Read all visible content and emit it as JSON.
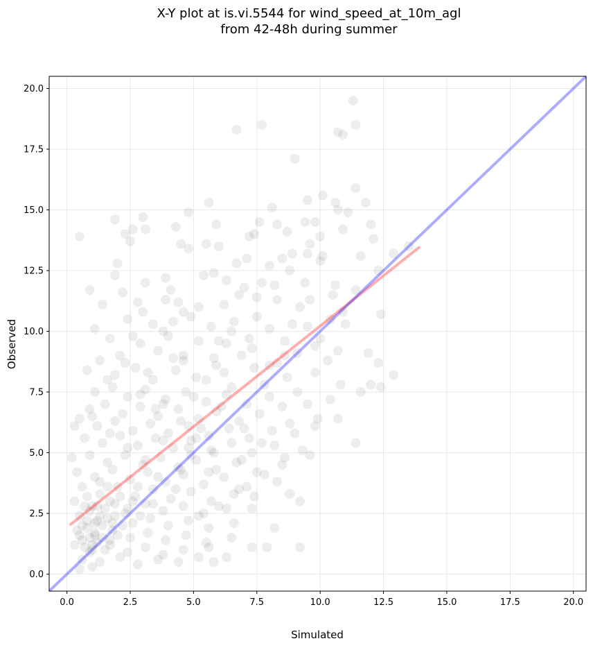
{
  "chart_data": {
    "type": "scatter",
    "title": [
      "X-Y plot at is.vi.5544 for wind_speed_at_10m_agl",
      "from 42-48h during summer"
    ],
    "xlabel": "Simulated",
    "ylabel": "Observed",
    "xlim": [
      -0.7,
      20.5
    ],
    "ylim": [
      -0.7,
      20.5
    ],
    "xticks": [
      0.0,
      2.5,
      5.0,
      7.5,
      10.0,
      12.5,
      15.0,
      17.5,
      20.0
    ],
    "yticks": [
      0.0,
      2.5,
      5.0,
      7.5,
      10.0,
      12.5,
      15.0,
      17.5,
      20.0
    ],
    "grid": true,
    "point_color": "#000000",
    "points": [
      [
        11.3,
        19.5
      ],
      [
        7.7,
        18.5
      ],
      [
        6.7,
        18.3
      ],
      [
        10.7,
        18.2
      ],
      [
        11.4,
        18.5
      ],
      [
        10.9,
        18.1
      ],
      [
        9.0,
        17.1
      ],
      [
        10.1,
        15.6
      ],
      [
        11.4,
        15.9
      ],
      [
        5.6,
        15.3
      ],
      [
        9.5,
        15.4
      ],
      [
        10.6,
        15.3
      ],
      [
        11.8,
        15.3
      ],
      [
        8.1,
        15.1
      ],
      [
        10.7,
        15.0
      ],
      [
        11.1,
        14.9
      ],
      [
        1.9,
        14.6
      ],
      [
        3.0,
        14.7
      ],
      [
        4.8,
        14.9
      ],
      [
        9.4,
        14.5
      ],
      [
        9.8,
        14.5
      ],
      [
        12.0,
        14.4
      ],
      [
        2.6,
        14.2
      ],
      [
        3.1,
        14.2
      ],
      [
        4.3,
        14.3
      ],
      [
        5.9,
        14.4
      ],
      [
        7.6,
        14.5
      ],
      [
        8.3,
        14.4
      ],
      [
        0.5,
        13.9
      ],
      [
        2.3,
        14.0
      ],
      [
        2.5,
        13.7
      ],
      [
        7.4,
        14.0
      ],
      [
        8.7,
        14.1
      ],
      [
        10.0,
        13.9
      ],
      [
        10.9,
        14.2
      ],
      [
        12.1,
        13.8
      ],
      [
        4.5,
        13.6
      ],
      [
        5.5,
        13.6
      ],
      [
        6.0,
        13.5
      ],
      [
        7.2,
        13.9
      ],
      [
        9.6,
        13.6
      ],
      [
        8.9,
        13.2
      ],
      [
        9.5,
        13.2
      ],
      [
        10.1,
        13.1
      ],
      [
        11.6,
        13.1
      ],
      [
        12.9,
        13.2
      ],
      [
        13.5,
        13.5
      ],
      [
        2.0,
        12.8
      ],
      [
        6.7,
        12.8
      ],
      [
        8.5,
        13.0
      ],
      [
        10.0,
        12.9
      ],
      [
        4.8,
        13.4
      ],
      [
        12.3,
        12.5
      ],
      [
        1.9,
        12.3
      ],
      [
        3.9,
        12.2
      ],
      [
        5.4,
        12.3
      ],
      [
        5.8,
        12.4
      ],
      [
        7.7,
        12.0
      ],
      [
        8.8,
        12.5
      ],
      [
        10.6,
        11.9
      ],
      [
        11.4,
        11.7
      ],
      [
        0.9,
        11.7
      ],
      [
        2.2,
        11.6
      ],
      [
        3.1,
        12.0
      ],
      [
        4.1,
        11.7
      ],
      [
        7.0,
        11.8
      ],
      [
        8.2,
        11.9
      ],
      [
        9.6,
        11.3
      ],
      [
        10.5,
        11.5
      ],
      [
        1.4,
        11.1
      ],
      [
        2.8,
        11.2
      ],
      [
        3.9,
        11.3
      ],
      [
        4.6,
        10.8
      ],
      [
        6.2,
        11.1
      ],
      [
        7.5,
        11.4
      ],
      [
        9.2,
        11.0
      ],
      [
        10.4,
        10.5
      ],
      [
        12.4,
        10.7
      ],
      [
        1.1,
        10.1
      ],
      [
        2.4,
        10.5
      ],
      [
        3.4,
        10.3
      ],
      [
        4.9,
        10.6
      ],
      [
        5.7,
        10.2
      ],
      [
        6.6,
        10.4
      ],
      [
        8.0,
        10.1
      ],
      [
        9.5,
        10.2
      ],
      [
        11.0,
        10.3
      ],
      [
        1.7,
        9.7
      ],
      [
        2.9,
        9.5
      ],
      [
        4.0,
        9.8
      ],
      [
        5.2,
        9.6
      ],
      [
        6.3,
        9.5
      ],
      [
        7.2,
        9.7
      ],
      [
        8.6,
        9.6
      ],
      [
        9.8,
        9.4
      ],
      [
        10.7,
        9.2
      ],
      [
        11.9,
        9.1
      ],
      [
        1.3,
        8.8
      ],
      [
        2.1,
        9.0
      ],
      [
        3.6,
        9.2
      ],
      [
        4.6,
        8.8
      ],
      [
        5.8,
        8.9
      ],
      [
        6.9,
        9.0
      ],
      [
        8.3,
        8.7
      ],
      [
        9.1,
        9.1
      ],
      [
        10.3,
        8.8
      ],
      [
        12.3,
        8.7
      ],
      [
        12.9,
        8.2
      ],
      [
        0.8,
        8.4
      ],
      [
        1.9,
        8.2
      ],
      [
        2.7,
        8.5
      ],
      [
        3.4,
        8.0
      ],
      [
        4.3,
        8.4
      ],
      [
        5.1,
        8.1
      ],
      [
        6.2,
        8.3
      ],
      [
        7.4,
        8.5
      ],
      [
        8.7,
        8.1
      ],
      [
        9.8,
        8.3
      ],
      [
        10.8,
        7.8
      ],
      [
        12.0,
        7.8
      ],
      [
        12.4,
        7.7
      ],
      [
        11.6,
        7.5
      ],
      [
        1.1,
        7.5
      ],
      [
        1.8,
        7.7
      ],
      [
        2.4,
        7.3
      ],
      [
        3.1,
        7.6
      ],
      [
        3.9,
        7.2
      ],
      [
        4.7,
        7.5
      ],
      [
        5.5,
        7.1
      ],
      [
        6.3,
        7.4
      ],
      [
        7.1,
        7.0
      ],
      [
        8.0,
        7.3
      ],
      [
        9.1,
        7.5
      ],
      [
        10.4,
        7.2
      ],
      [
        0.9,
        6.8
      ],
      [
        1.5,
        7.0
      ],
      [
        2.2,
        6.6
      ],
      [
        2.9,
        6.9
      ],
      [
        3.6,
        6.5
      ],
      [
        4.4,
        6.8
      ],
      [
        5.2,
        6.4
      ],
      [
        5.9,
        6.7
      ],
      [
        6.8,
        6.3
      ],
      [
        7.6,
        6.6
      ],
      [
        8.5,
        6.9
      ],
      [
        9.9,
        6.4
      ],
      [
        10.7,
        6.4
      ],
      [
        0.5,
        6.4
      ],
      [
        1.2,
        6.1
      ],
      [
        1.9,
        6.3
      ],
      [
        2.6,
        5.9
      ],
      [
        3.3,
        6.2
      ],
      [
        4.0,
        5.8
      ],
      [
        4.8,
        6.1
      ],
      [
        5.6,
        5.7
      ],
      [
        6.4,
        6.0
      ],
      [
        7.2,
        5.6
      ],
      [
        8.1,
        5.9
      ],
      [
        9.0,
        5.8
      ],
      [
        9.8,
        6.1
      ],
      [
        11.4,
        5.4
      ],
      [
        0.3,
        6.1
      ],
      [
        0.7,
        5.6
      ],
      [
        1.4,
        5.4
      ],
      [
        2.1,
        5.7
      ],
      [
        2.8,
        5.3
      ],
      [
        3.5,
        5.6
      ],
      [
        4.2,
        5.2
      ],
      [
        4.9,
        5.5
      ],
      [
        5.7,
        5.1
      ],
      [
        6.5,
        5.4
      ],
      [
        7.3,
        5.0
      ],
      [
        8.2,
        5.3
      ],
      [
        9.3,
        5.1
      ],
      [
        0.2,
        4.8
      ],
      [
        0.9,
        4.9
      ],
      [
        1.6,
        4.6
      ],
      [
        2.3,
        4.9
      ],
      [
        3.0,
        4.5
      ],
      [
        3.7,
        4.8
      ],
      [
        4.4,
        4.4
      ],
      [
        5.1,
        4.7
      ],
      [
        5.9,
        4.3
      ],
      [
        6.7,
        4.6
      ],
      [
        7.5,
        4.2
      ],
      [
        8.5,
        4.5
      ],
      [
        0.4,
        4.2
      ],
      [
        1.1,
        4.0
      ],
      [
        1.8,
        4.3
      ],
      [
        2.5,
        3.9
      ],
      [
        3.2,
        4.2
      ],
      [
        3.9,
        3.8
      ],
      [
        4.6,
        4.1
      ],
      [
        5.4,
        3.7
      ],
      [
        6.2,
        4.0
      ],
      [
        7.1,
        3.6
      ],
      [
        8.3,
        3.8
      ],
      [
        0.6,
        3.6
      ],
      [
        1.3,
        3.3
      ],
      [
        2.0,
        3.6
      ],
      [
        2.7,
        3.2
      ],
      [
        3.4,
        3.5
      ],
      [
        4.1,
        3.1
      ],
      [
        4.9,
        3.4
      ],
      [
        5.7,
        3.0
      ],
      [
        6.6,
        3.3
      ],
      [
        7.4,
        3.2
      ],
      [
        8.8,
        3.3
      ],
      [
        9.2,
        3.0
      ],
      [
        0.3,
        3.0
      ],
      [
        1.0,
        2.8
      ],
      [
        1.7,
        3.0
      ],
      [
        2.4,
        2.7
      ],
      [
        3.1,
        2.9
      ],
      [
        3.8,
        2.6
      ],
      [
        4.6,
        2.8
      ],
      [
        5.4,
        2.5
      ],
      [
        6.3,
        2.7
      ],
      [
        7.3,
        2.7
      ],
      [
        0.5,
        2.4
      ],
      [
        1.2,
        2.2
      ],
      [
        1.9,
        2.4
      ],
      [
        2.6,
        2.1
      ],
      [
        3.3,
        2.3
      ],
      [
        4.0,
        2.0
      ],
      [
        4.8,
        2.2
      ],
      [
        5.6,
        1.9
      ],
      [
        6.6,
        2.1
      ],
      [
        0.4,
        1.8
      ],
      [
        1.1,
        1.6
      ],
      [
        1.8,
        1.8
      ],
      [
        2.5,
        1.5
      ],
      [
        3.2,
        1.7
      ],
      [
        3.9,
        1.4
      ],
      [
        4.7,
        1.6
      ],
      [
        5.5,
        1.3
      ],
      [
        6.5,
        1.5
      ],
      [
        8.2,
        1.9
      ],
      [
        0.3,
        1.2
      ],
      [
        1.0,
        1.0
      ],
      [
        1.7,
        1.2
      ],
      [
        2.4,
        0.9
      ],
      [
        3.1,
        1.1
      ],
      [
        3.8,
        0.8
      ],
      [
        4.6,
        1.0
      ],
      [
        5.6,
        1.1
      ],
      [
        7.3,
        1.1
      ],
      [
        7.9,
        1.1
      ],
      [
        9.2,
        1.1
      ],
      [
        0.6,
        0.6
      ],
      [
        1.3,
        0.5
      ],
      [
        2.1,
        0.7
      ],
      [
        2.8,
        0.4
      ],
      [
        3.6,
        0.6
      ],
      [
        4.4,
        0.5
      ],
      [
        5.2,
        0.7
      ],
      [
        5.8,
        0.5
      ],
      [
        6.3,
        0.7
      ],
      [
        0.5,
        0.2
      ],
      [
        1.0,
        0.3
      ],
      [
        0.6,
        1.4
      ],
      [
        0.8,
        1.9
      ],
      [
        0.9,
        2.6
      ],
      [
        1.2,
        1.3
      ],
      [
        1.4,
        2.0
      ],
      [
        1.5,
        2.7
      ],
      [
        0.7,
        1.1
      ],
      [
        1.1,
        1.7
      ],
      [
        1.6,
        2.3
      ],
      [
        0.9,
        1.5
      ],
      [
        1.3,
        2.4
      ],
      [
        0.8,
        2.2
      ],
      [
        1.0,
        1.2
      ],
      [
        1.4,
        1.5
      ],
      [
        1.8,
        2.1
      ],
      [
        2.0,
        1.6
      ],
      [
        0.6,
        2.0
      ],
      [
        1.2,
        2.8
      ],
      [
        1.7,
        1.4
      ],
      [
        2.2,
        2.0
      ],
      [
        0.9,
        0.9
      ],
      [
        1.5,
        1.0
      ],
      [
        2.3,
        2.5
      ],
      [
        2.6,
        3.0
      ],
      [
        0.5,
        1.6
      ],
      [
        1.1,
        2.1
      ],
      [
        0.7,
        2.8
      ],
      [
        1.9,
        2.9
      ],
      [
        2.9,
        2.4
      ],
      [
        3.4,
        2.9
      ],
      [
        1.3,
        3.8
      ],
      [
        2.1,
        3.2
      ],
      [
        0.8,
        3.2
      ],
      [
        1.6,
        3.6
      ],
      [
        2.8,
        3.6
      ],
      [
        3.6,
        4.0
      ],
      [
        4.3,
        3.5
      ],
      [
        4.9,
        4.9
      ],
      [
        5.3,
        6.0
      ],
      [
        5.0,
        7.3
      ],
      [
        5.5,
        8.0
      ],
      [
        5.9,
        8.6
      ],
      [
        6.0,
        9.6
      ],
      [
        4.6,
        9.0
      ],
      [
        6.5,
        7.7
      ],
      [
        5.1,
        5.6
      ],
      [
        4.5,
        6.3
      ],
      [
        3.8,
        7.0
      ],
      [
        4.2,
        8.9
      ],
      [
        3.2,
        8.3
      ],
      [
        2.9,
        7.4
      ],
      [
        3.5,
        6.8
      ],
      [
        4.8,
        5.2
      ],
      [
        5.6,
        4.2
      ],
      [
        5.2,
        2.4
      ],
      [
        6.0,
        2.8
      ],
      [
        6.8,
        3.5
      ],
      [
        7.8,
        4.1
      ],
      [
        8.6,
        4.8
      ],
      [
        9.6,
        4.9
      ],
      [
        7.0,
        6.0
      ],
      [
        6.1,
        6.9
      ],
      [
        7.8,
        7.8
      ],
      [
        8.6,
        9.0
      ],
      [
        7.5,
        10.6
      ],
      [
        6.8,
        11.5
      ],
      [
        3.8,
        10.0
      ],
      [
        4.4,
        11.2
      ],
      [
        3.0,
        10.8
      ],
      [
        2.6,
        9.8
      ],
      [
        2.3,
        8.7
      ],
      [
        1.6,
        8.0
      ],
      [
        1.0,
        6.5
      ],
      [
        1.7,
        5.8
      ],
      [
        2.4,
        5.2
      ],
      [
        3.1,
        4.7
      ],
      [
        3.8,
        5.5
      ],
      [
        4.5,
        4.3
      ],
      [
        5.8,
        5.0
      ],
      [
        6.9,
        4.7
      ],
      [
        7.7,
        5.4
      ],
      [
        8.8,
        6.2
      ],
      [
        9.5,
        7.0
      ],
      [
        10.0,
        9.7
      ],
      [
        10.9,
        10.8
      ],
      [
        8.9,
        10.3
      ],
      [
        8.3,
        11.3
      ],
      [
        9.4,
        12.0
      ],
      [
        8.0,
        12.7
      ],
      [
        7.1,
        13.0
      ],
      [
        6.3,
        12.1
      ],
      [
        5.2,
        11.0
      ],
      [
        4.2,
        10.4
      ],
      [
        6.5,
        10.0
      ],
      [
        7.3,
        9.3
      ],
      [
        8.0,
        8.6
      ]
    ],
    "trend_line": {
      "color": "#ff0000",
      "x": [
        0.15,
        13.9
      ],
      "y": [
        2.05,
        13.45
      ]
    },
    "identity_line": {
      "color": "#0000ff",
      "x": [
        -0.7,
        20.5
      ],
      "y": [
        -0.7,
        20.5
      ]
    }
  }
}
